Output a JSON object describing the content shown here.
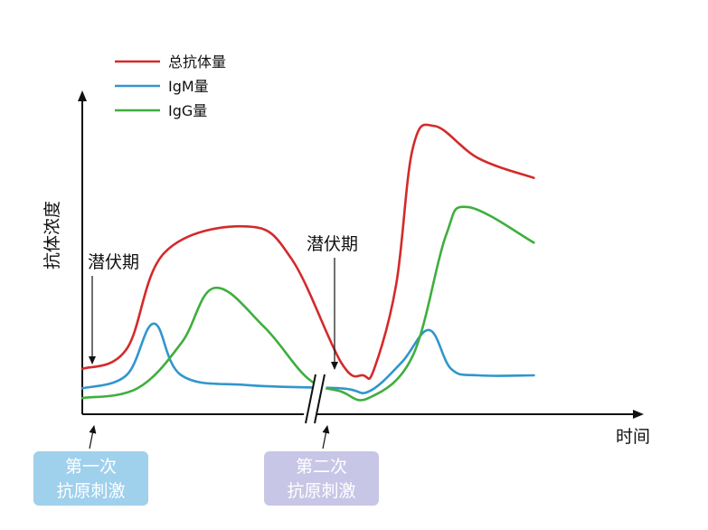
{
  "chart_data": {
    "type": "line",
    "ylabel": "抗体浓度",
    "xlabel": "时间",
    "legend": {
      "placement": "top-left",
      "entries": [
        {
          "name": "总抗体量",
          "color": "#d42a2a"
        },
        {
          "name": "IgM量",
          "color": "#3196cc"
        },
        {
          "name": "IgG量",
          "color": "#3fae3f"
        }
      ]
    },
    "annotations": [
      {
        "text": "潜伏期",
        "stimulus": 1
      },
      {
        "text": "潜伏期",
        "stimulus": 2
      }
    ],
    "stimuli": [
      {
        "line1": "第一次",
        "line2": "抗原刺激",
        "color": "#9fd0ec"
      },
      {
        "line1": "第二次",
        "line2": "抗原刺激",
        "color": "#c8c6e6"
      }
    ],
    "x_unit": "relative time",
    "y_unit": "relative concentration",
    "axis_break": true,
    "series": [
      {
        "name": "总抗体量",
        "color": "#d42a2a",
        "points": [
          [
            0,
            14
          ],
          [
            8,
            20
          ],
          [
            15,
            50
          ],
          [
            30,
            58
          ],
          [
            38,
            48
          ],
          [
            47,
            16
          ],
          [
            51,
            12
          ],
          [
            53,
            14
          ],
          [
            57,
            40
          ],
          [
            60,
            82
          ],
          [
            64,
            89
          ],
          [
            72,
            79
          ],
          [
            82,
            73
          ]
        ]
      },
      {
        "name": "IgM量",
        "color": "#3196cc",
        "points": [
          [
            0,
            8
          ],
          [
            8,
            12
          ],
          [
            13,
            28
          ],
          [
            18,
            12
          ],
          [
            30,
            9
          ],
          [
            47,
            8
          ],
          [
            52,
            7
          ],
          [
            58,
            16
          ],
          [
            63,
            26
          ],
          [
            67,
            14
          ],
          [
            72,
            12
          ],
          [
            82,
            12
          ]
        ]
      },
      {
        "name": "IgG量",
        "color": "#3fae3f",
        "points": [
          [
            0,
            5
          ],
          [
            10,
            8
          ],
          [
            18,
            22
          ],
          [
            24,
            39
          ],
          [
            33,
            27
          ],
          [
            41,
            11
          ],
          [
            47,
            7
          ],
          [
            52,
            5
          ],
          [
            60,
            18
          ],
          [
            66,
            55
          ],
          [
            70,
            64
          ],
          [
            82,
            53
          ]
        ]
      }
    ],
    "xlim": [
      0,
      100
    ],
    "ylim": [
      0,
      100
    ]
  }
}
